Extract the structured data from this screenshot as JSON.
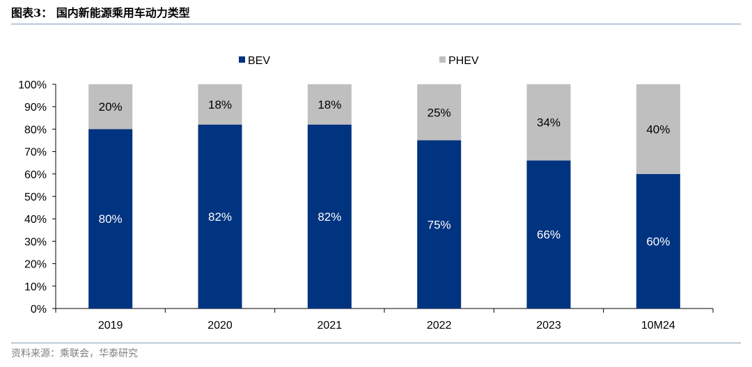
{
  "header": {
    "title": "图表3：  国内新能源乘用车动力类型"
  },
  "footer": {
    "source": "资料来源：乘联会，华泰研究"
  },
  "chart_data": {
    "type": "bar",
    "stacked": true,
    "categories": [
      "2019",
      "2020",
      "2021",
      "2022",
      "2023",
      "10M24"
    ],
    "series": [
      {
        "name": "BEV",
        "color": "#003380",
        "values": [
          80,
          82,
          82,
          75,
          66,
          60
        ],
        "labels": [
          "80%",
          "82%",
          "82%",
          "75%",
          "66%",
          "60%"
        ]
      },
      {
        "name": "PHEV",
        "color": "#bfbfbf",
        "values": [
          20,
          18,
          18,
          25,
          34,
          40
        ],
        "labels": [
          "20%",
          "18%",
          "18%",
          "25%",
          "34%",
          "40%"
        ]
      }
    ],
    "ylim": [
      0,
      100
    ],
    "yticks": [
      "0%",
      "10%",
      "20%",
      "30%",
      "40%",
      "50%",
      "60%",
      "70%",
      "80%",
      "90%",
      "100%"
    ],
    "legend": "top-center",
    "grid": false
  }
}
